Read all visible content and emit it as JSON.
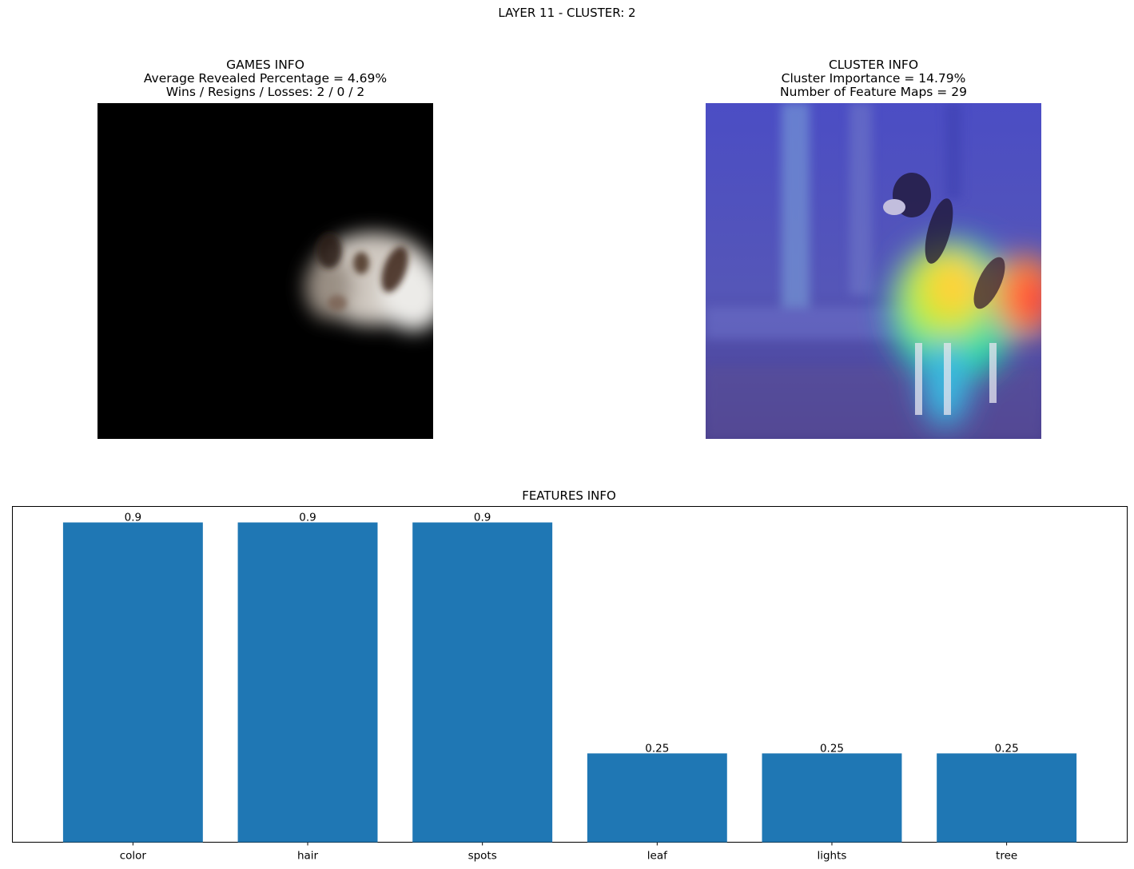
{
  "suptitle": "LAYER 11 - CLUSTER: 2",
  "games_info": {
    "title": "GAMES INFO",
    "line1": "Average Revealed Percentage = 4.69%",
    "line2": "Wins / Resigns / Losses: 2 / 0 / 2"
  },
  "cluster_info": {
    "title": "CLUSTER INFO",
    "line1": "Cluster Importance = 14.79%",
    "line2": "Number of Feature Maps = 29"
  },
  "features_info": {
    "title": "FEATURES INFO"
  },
  "colors": {
    "bar": "#1f77b4",
    "mask_background": "#000000",
    "heatmap_base": "#4a4acb"
  },
  "chart_data": {
    "type": "bar",
    "title": "FEATURES INFO",
    "categories": [
      "color",
      "hair",
      "spots",
      "leaf",
      "lights",
      "tree"
    ],
    "values": [
      0.9,
      0.9,
      0.9,
      0.25,
      0.25,
      0.25
    ],
    "data_labels": [
      "0.9",
      "0.9",
      "0.9",
      "0.25",
      "0.25",
      "0.25"
    ],
    "xlabel": "",
    "ylabel": "",
    "ylim": [
      0,
      0.945
    ],
    "y_ticks_shown": false,
    "grid": false
  }
}
